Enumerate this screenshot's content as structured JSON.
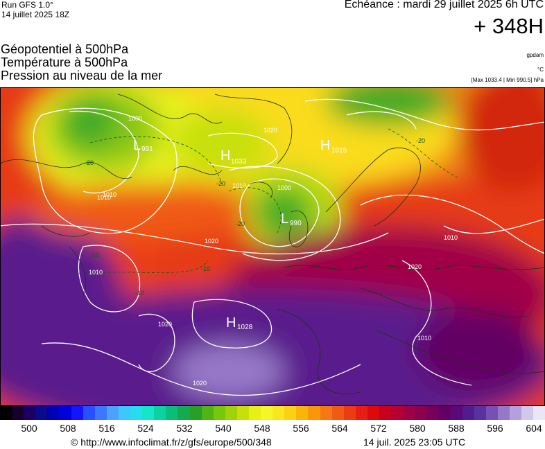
{
  "header": {
    "model": "Run GFS 1.0°",
    "run_date": "14 juillet 2025 18Z",
    "valid": "Echéance : mardi 29 juillet 2025 6h UTC",
    "step": "+ 348H"
  },
  "titles": [
    "Géopotentiel à 500hPa",
    "Température à 500hPa",
    "Pression au niveau de la mer"
  ],
  "units": {
    "geopotential": "gpdam",
    "temperature": "°C",
    "pressure": "[Max 1033.4 | Min 990.5] hPa"
  },
  "map": {
    "pressure_centers": [
      {
        "type": "H",
        "value": "1033"
      },
      {
        "type": "H",
        "value": "1015"
      },
      {
        "type": "L",
        "value": "990"
      },
      {
        "type": "H",
        "value": "1028"
      },
      {
        "type": "L",
        "value": "991"
      }
    ],
    "isobar_labels": [
      "1000",
      "1010",
      "1020",
      "1010",
      "1020",
      "1010",
      "1020",
      "1010",
      "1020",
      "1010",
      "1020",
      "1000",
      "1010"
    ],
    "temperature_labels": [
      "-20",
      "-20",
      "-20",
      "-20",
      "-10",
      "-10",
      "-10"
    ]
  },
  "colorbar": {
    "colors": [
      "#000000",
      "#14002a",
      "#1a0066",
      "#0a0a8c",
      "#0000b4",
      "#0000dc",
      "#1414ff",
      "#2850ff",
      "#3c78ff",
      "#4ca0ff",
      "#3cc8ff",
      "#28dcf0",
      "#14e6c8",
      "#0ad2a0",
      "#0abe78",
      "#14aa50",
      "#28a028",
      "#50b414",
      "#78c80a",
      "#a0d20a",
      "#c8e00a",
      "#e6f014",
      "#f5f528",
      "#fae61e",
      "#fad214",
      "#fab40a",
      "#fa960a",
      "#f57814",
      "#f05a14",
      "#eb3c14",
      "#e61e14",
      "#dc0a0a",
      "#c8001e",
      "#b40032",
      "#a00046",
      "#8c0050",
      "#78005a",
      "#640064",
      "#5a0a78",
      "#501e8c",
      "#5a32a0",
      "#7850b4",
      "#9678c8",
      "#b4a0dc",
      "#d2c8eb",
      "#ebe6f5"
    ],
    "tick_labels": [
      "500",
      "508",
      "516",
      "524",
      "532",
      "540",
      "548",
      "556",
      "564",
      "572",
      "580",
      "588",
      "596",
      "604"
    ]
  },
  "footer": {
    "source": "© http://www.infoclimat.fr/z/gfs/europe/500/348",
    "generated": "14 juil. 2025 23:05 UTC"
  }
}
